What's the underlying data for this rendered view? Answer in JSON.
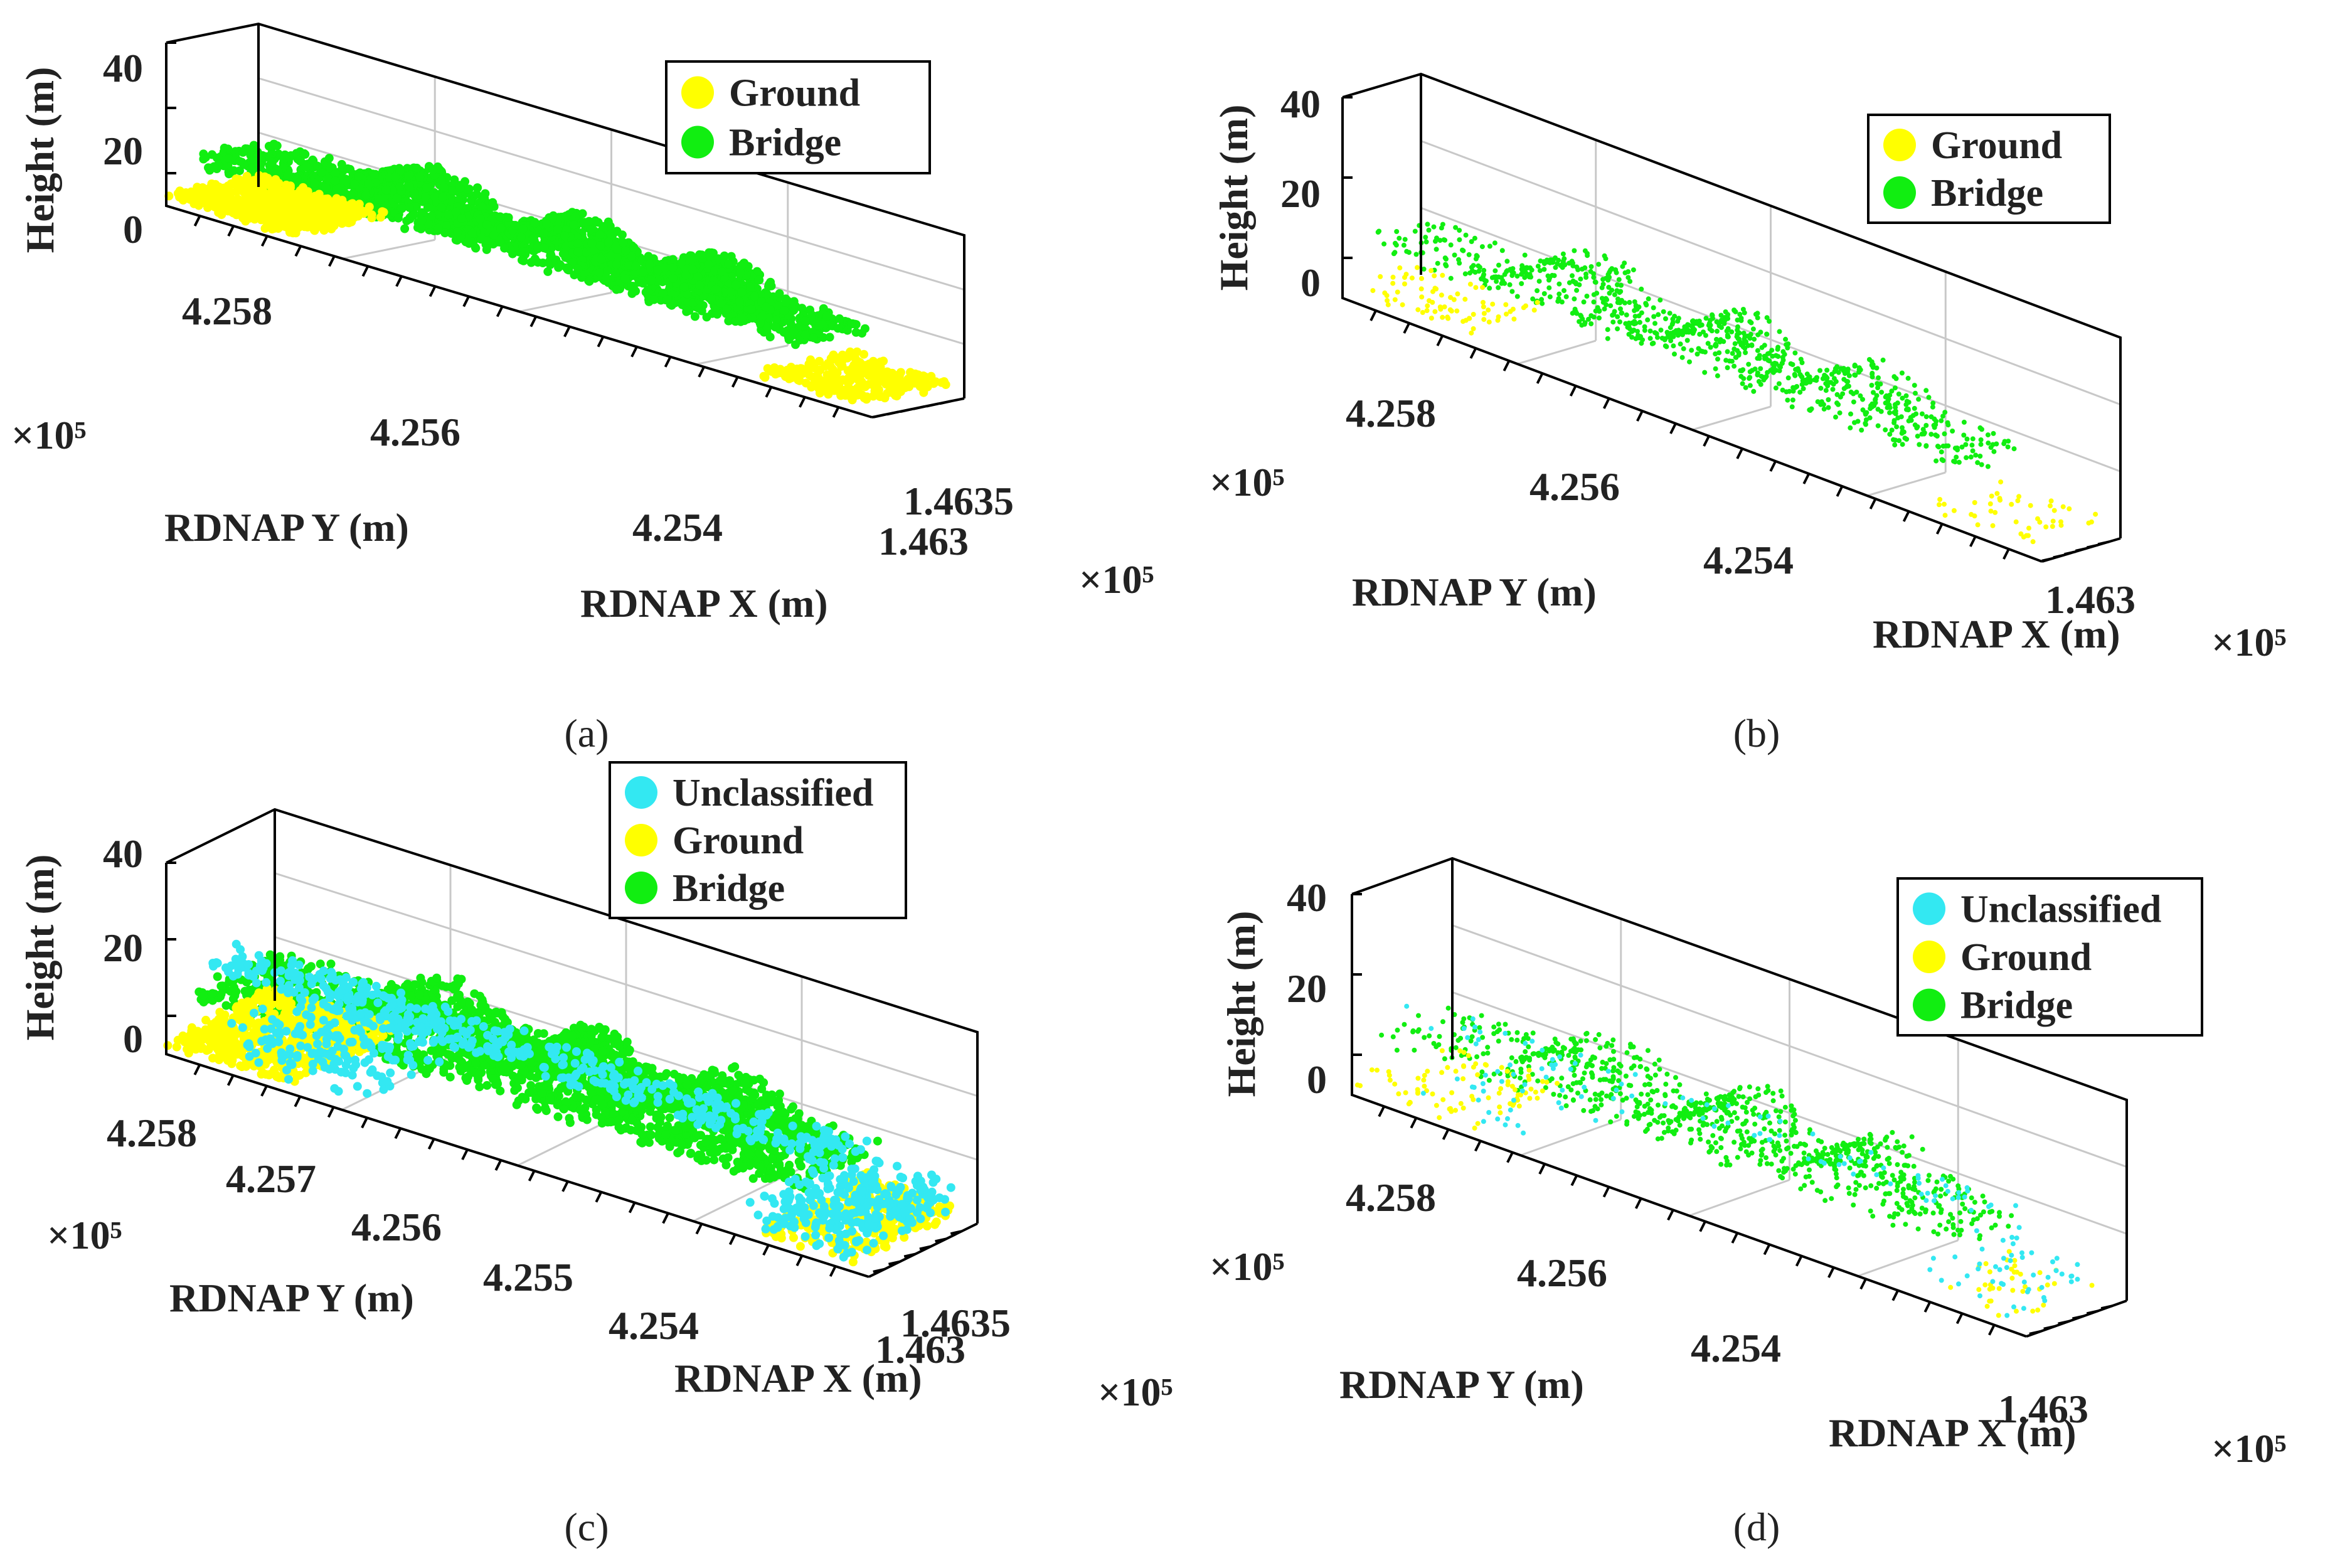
{
  "chart_data": [
    {
      "type": "scatter",
      "panel": "(a)",
      "style": "dense",
      "legend": [
        "Ground",
        "Bridge"
      ],
      "zlabel": "Height (m)",
      "ylabel": "RDNAP Y (m)",
      "xlabel": "RDNAP X (m)",
      "z_ticks": [
        "40",
        "20",
        "0"
      ],
      "y_ticks": [
        "4.258",
        "4.256",
        "4.254"
      ],
      "x_ticks": [
        "1.4635",
        "1.463"
      ],
      "y_multiplier": "×10⁵",
      "x_multiplier": "×10⁵",
      "zlim": [
        -5,
        40
      ],
      "grid": true,
      "legend_position": "top-right"
    },
    {
      "type": "scatter",
      "panel": "(b)",
      "style": "sparse",
      "legend": [
        "Ground",
        "Bridge"
      ],
      "zlabel": "Height (m)",
      "ylabel": "RDNAP Y (m)",
      "xlabel": "RDNAP X (m)",
      "z_ticks": [
        "40",
        "20",
        "0"
      ],
      "y_ticks": [
        "4.258",
        "4.256",
        "4.254"
      ],
      "x_ticks": [
        "1.463"
      ],
      "y_multiplier": "×10⁵",
      "x_multiplier": "×10⁵",
      "zlim": [
        -5,
        40
      ],
      "grid": true,
      "legend_position": "top-right"
    },
    {
      "type": "scatter",
      "panel": "(c)",
      "style": "dense",
      "legend": [
        "Unclassified",
        "Ground",
        "Bridge"
      ],
      "zlabel": "Height (m)",
      "ylabel": "RDNAP Y (m)",
      "xlabel": "RDNAP X (m)",
      "z_ticks": [
        "40",
        "20",
        "0"
      ],
      "y_ticks": [
        "4.258",
        "4.257",
        "4.256",
        "4.255",
        "4.254"
      ],
      "x_ticks": [
        "1.4635",
        "1.463"
      ],
      "y_multiplier": "×10⁵",
      "x_multiplier": "×10⁵",
      "zlim": [
        -5,
        40
      ],
      "grid": true,
      "legend_position": "top-right"
    },
    {
      "type": "scatter",
      "panel": "(d)",
      "style": "sparse",
      "legend": [
        "Unclassified",
        "Ground",
        "Bridge"
      ],
      "zlabel": "Height (m)",
      "ylabel": "RDNAP Y (m)",
      "xlabel": "RDNAP X (m)",
      "z_ticks": [
        "40",
        "20",
        "0"
      ],
      "y_ticks": [
        "4.258",
        "4.256",
        "4.254"
      ],
      "x_ticks": [
        "1.463"
      ],
      "y_multiplier": "×10⁵",
      "x_multiplier": "×10⁵",
      "zlim": [
        -5,
        40
      ],
      "grid": true,
      "legend_position": "top-right"
    }
  ],
  "colors": {
    "Unclassified": "#33e8f2",
    "Ground": "#ffff00",
    "Bridge": "#11ee11"
  }
}
